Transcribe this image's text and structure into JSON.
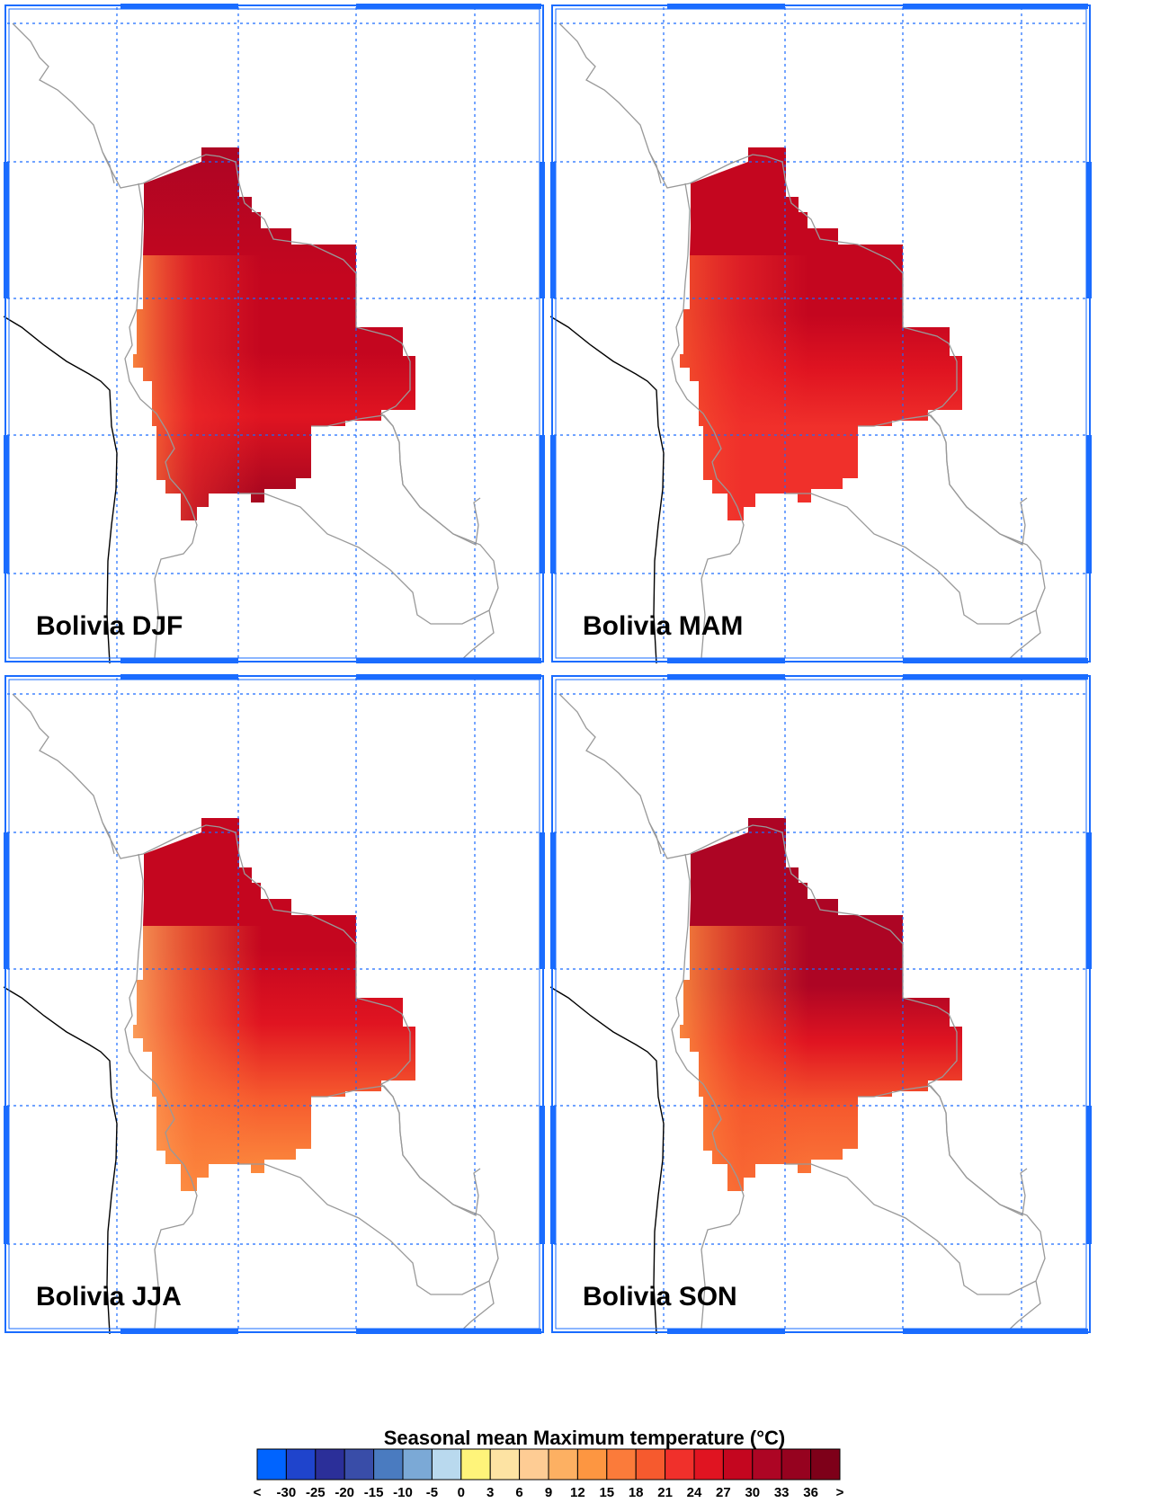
{
  "panels": [
    {
      "region": "Bolivia",
      "season": "DJF",
      "label": "Bolivia DJF"
    },
    {
      "region": "Bolivia",
      "season": "MAM",
      "label": "Bolivia MAM"
    },
    {
      "region": "Bolivia",
      "season": "JJA",
      "label": "Bolivia JJA"
    },
    {
      "region": "Bolivia",
      "season": "SON",
      "label": "Bolivia SON"
    }
  ],
  "colorbar": {
    "title": "Seasonal mean Maximum temperature (°C)",
    "low_label": "<",
    "high_label": ">",
    "levels": [
      "-30",
      "-25",
      "-20",
      "-15",
      "-10",
      "-5",
      "0",
      "3",
      "6",
      "9",
      "12",
      "15",
      "18",
      "21",
      "24",
      "27",
      "30",
      "33",
      "36"
    ],
    "colors": [
      "#0064ff",
      "#1f44cc",
      "#2b2f99",
      "#394da8",
      "#4a7bc0",
      "#7ba9d6",
      "#b9d9ee",
      "#fff47a",
      "#fde3a3",
      "#fecc94",
      "#fdb062",
      "#fd9641",
      "#fb7b3a",
      "#f65a2e",
      "#f0302b",
      "#e01421",
      "#c4061f",
      "#ad0524",
      "#96021f",
      "#7e0019"
    ]
  },
  "colors": {
    "frame": "#1a6cff",
    "grid": "#1a6cff",
    "borders": "#999999",
    "coast": "#000000"
  }
}
